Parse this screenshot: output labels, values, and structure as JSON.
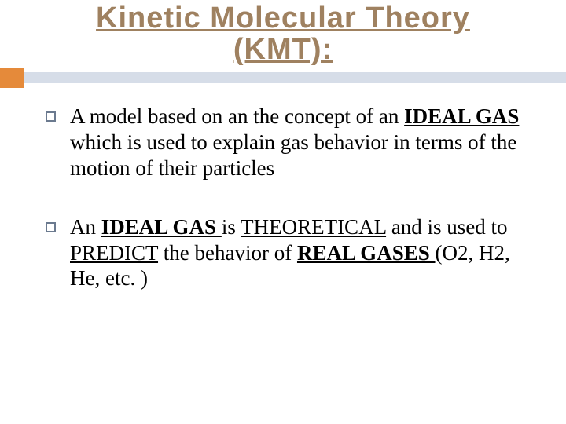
{
  "title": {
    "line1": "Kinetic Molecular Theory",
    "line2": "(KMT):",
    "color": "#9f8160",
    "fontsize": 38,
    "font_family": "Papyrus"
  },
  "accent": {
    "bar_color": "#d6dde8",
    "square_color": "#e58a3a"
  },
  "body": {
    "fontsize": 27,
    "color": "#000000",
    "bullet_border_color": "#6b7a8f"
  },
  "bullets": [
    {
      "parts": [
        {
          "text": "A model based on an the concept of an "
        },
        {
          "text": "IDEAL GAS ",
          "bold": true,
          "underline": true
        },
        {
          "text": " which is used to explain gas behavior in terms of the motion of their particles"
        }
      ]
    },
    {
      "parts": [
        {
          "text": "An "
        },
        {
          "text": "IDEAL GAS ",
          "bold": true,
          "underline": true
        },
        {
          "text": "is "
        },
        {
          "text": "THEORETICAL",
          "underline": true
        },
        {
          "text": " and is used to "
        },
        {
          "text": "PREDICT",
          "underline": true
        },
        {
          "text": " the behavior of "
        },
        {
          "text": "REAL GASES ",
          "bold": true,
          "underline": true
        },
        {
          "text": "(O2, H2, He, etc. )"
        }
      ]
    }
  ]
}
